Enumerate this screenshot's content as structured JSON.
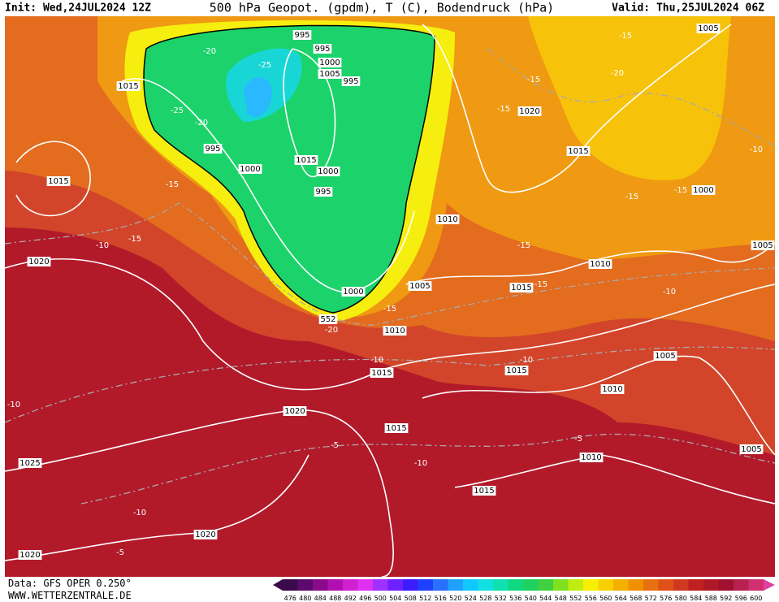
{
  "header": {
    "init": "Init: Wed,24JUL2024 12Z",
    "title": "500 hPa Geopot. (gpdm), T (C), Bodendruck (hPa)",
    "valid": "Valid: Thu,25JUL2024 06Z"
  },
  "map": {
    "labels": [
      "995",
      "995",
      "1000",
      "1005",
      "995",
      "1015",
      "1020",
      "1005",
      "995",
      "1015",
      "1000",
      "1015",
      "1000",
      "1015",
      "995",
      "1000",
      "1010",
      "1005",
      "1020",
      "1010",
      "1005",
      "1015",
      "1000",
      "1010",
      "1005",
      "1015",
      "1015",
      "1010",
      "1020",
      "1015",
      "1005",
      "1010",
      "1025",
      "1015",
      "1020",
      "1020",
      "-15",
      "-20",
      "-25",
      "-15",
      "-20",
      "-25",
      "-20",
      "-15",
      "-10",
      "-15",
      "-15",
      "-15",
      "-15",
      "-10",
      "-15",
      "-15",
      "-10",
      "-15",
      "-20",
      "-10",
      "-10",
      "-10",
      "-5",
      "-5",
      "-10",
      "-10",
      "-5",
      "552"
    ]
  },
  "colorbar": {
    "levels": [
      476,
      480,
      484,
      488,
      492,
      496,
      500,
      504,
      508,
      512,
      516,
      520,
      524,
      528,
      532,
      536,
      540,
      544,
      548,
      552,
      556,
      560,
      564,
      568,
      572,
      576,
      580,
      584,
      588,
      592,
      596,
      600
    ]
  },
  "footer": {
    "data": "Data: GFS OPER 0.250°",
    "site": "WWW.WETTERZENTRALE.DE"
  }
}
